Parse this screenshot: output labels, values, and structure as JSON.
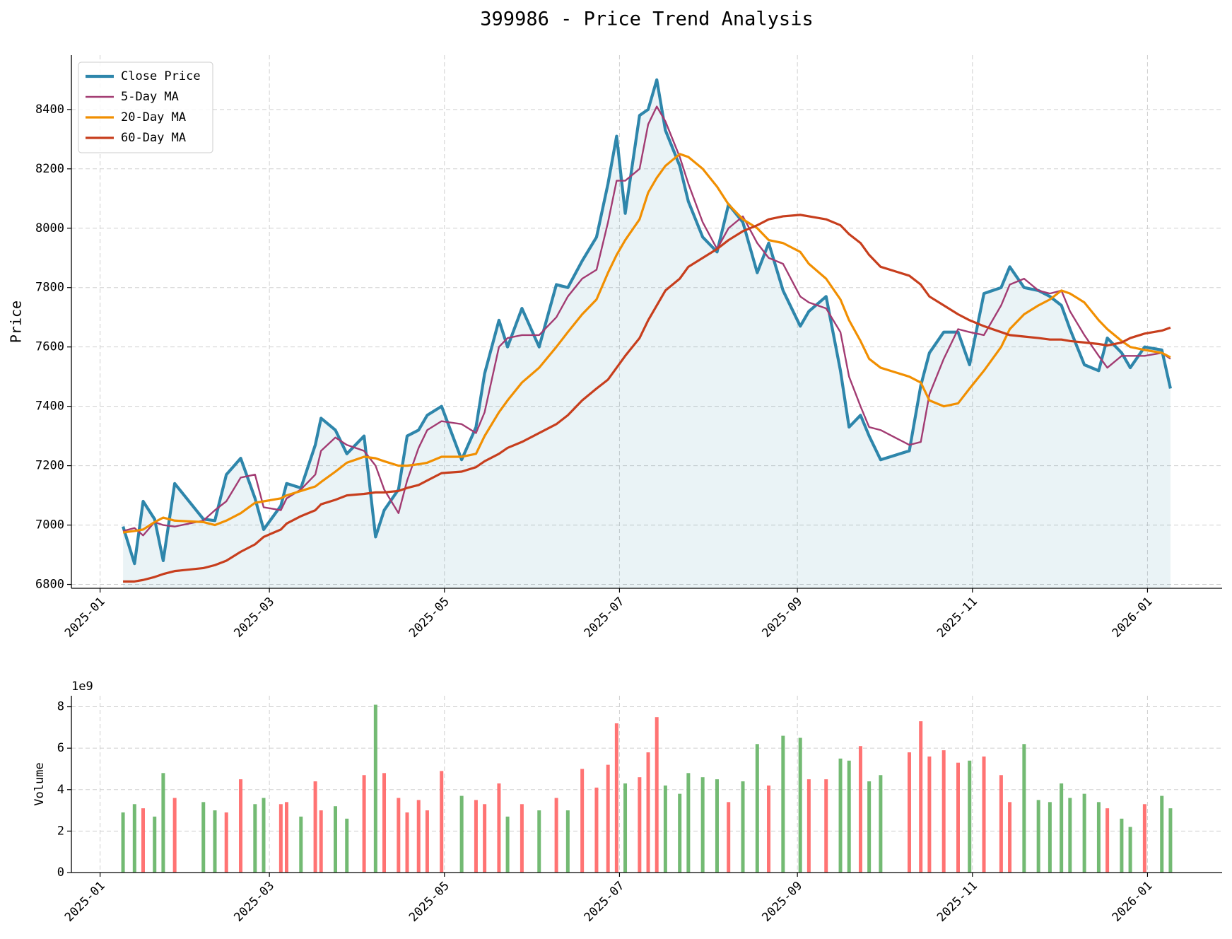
{
  "chart_data": [
    {
      "type": "line",
      "title": "399986 - Price Trend Analysis",
      "ylabel": "Price",
      "x": [
        "2025-01-09",
        "2025-01-13",
        "2025-01-16",
        "2025-01-20",
        "2025-01-23",
        "2025-01-27",
        "2025-02-06",
        "2025-02-10",
        "2025-02-14",
        "2025-02-19",
        "2025-02-24",
        "2025-02-27",
        "2025-03-05",
        "2025-03-07",
        "2025-03-12",
        "2025-03-17",
        "2025-03-19",
        "2025-03-24",
        "2025-03-28",
        "2025-04-03",
        "2025-04-07",
        "2025-04-10",
        "2025-04-15",
        "2025-04-18",
        "2025-04-22",
        "2025-04-25",
        "2025-04-30",
        "2025-05-07",
        "2025-05-12",
        "2025-05-15",
        "2025-05-20",
        "2025-05-23",
        "2025-05-28",
        "2025-06-03",
        "2025-06-09",
        "2025-06-13",
        "2025-06-18",
        "2025-06-23",
        "2025-06-27",
        "2025-06-30",
        "2025-07-03",
        "2025-07-08",
        "2025-07-11",
        "2025-07-14",
        "2025-07-17",
        "2025-07-22",
        "2025-07-25",
        "2025-07-30",
        "2025-08-04",
        "2025-08-08",
        "2025-08-13",
        "2025-08-18",
        "2025-08-22",
        "2025-08-27",
        "2025-09-02",
        "2025-09-05",
        "2025-09-11",
        "2025-09-16",
        "2025-09-19",
        "2025-09-23",
        "2025-09-26",
        "2025-09-30",
        "2025-10-10",
        "2025-10-14",
        "2025-10-17",
        "2025-10-22",
        "2025-10-27",
        "2025-10-31",
        "2025-11-05",
        "2025-11-11",
        "2025-11-14",
        "2025-11-19",
        "2025-11-24",
        "2025-11-28",
        "2025-12-02",
        "2025-12-05",
        "2025-12-10",
        "2025-12-15",
        "2025-12-18",
        "2025-12-23",
        "2025-12-26",
        "2025-12-31",
        "2026-01-06",
        "2026-01-09"
      ],
      "series": [
        {
          "name": "Close Price",
          "color": "#2e86ab",
          "values": [
            6995,
            6870,
            7080,
            7020,
            6880,
            7140,
            7020,
            7015,
            7170,
            7225,
            7090,
            6985,
            7065,
            7140,
            7125,
            7270,
            7360,
            7320,
            7240,
            7300,
            6960,
            7050,
            7120,
            7300,
            7320,
            7370,
            7400,
            7220,
            7330,
            7510,
            7690,
            7600,
            7730,
            7600,
            7810,
            7800,
            7890,
            7970,
            8150,
            8310,
            8050,
            8380,
            8400,
            8500,
            8330,
            8210,
            8090,
            7970,
            7920,
            8080,
            8020,
            7850,
            7950,
            7790,
            7670,
            7720,
            7770,
            7520,
            7330,
            7370,
            7300,
            7220,
            7250,
            7470,
            7580,
            7650,
            7650,
            7540,
            7780,
            7800,
            7870,
            7800,
            7790,
            7770,
            7740,
            7660,
            7540,
            7520,
            7630,
            7580,
            7530,
            7600,
            7590,
            7460
          ]
        },
        {
          "name": "5-Day MA",
          "color": "#a23b72",
          "values": [
            6980,
            6990,
            6965,
            7010,
            7000,
            6995,
            7015,
            7050,
            7080,
            7160,
            7170,
            7060,
            7050,
            7090,
            7120,
            7170,
            7250,
            7295,
            7270,
            7250,
            7200,
            7120,
            7040,
            7150,
            7260,
            7320,
            7350,
            7340,
            7310,
            7380,
            7600,
            7630,
            7640,
            7640,
            7700,
            7770,
            7830,
            7860,
            8020,
            8160,
            8160,
            8200,
            8350,
            8410,
            8360,
            8240,
            8150,
            8020,
            7930,
            8000,
            8040,
            7950,
            7900,
            7880,
            7770,
            7750,
            7730,
            7650,
            7500,
            7400,
            7330,
            7320,
            7270,
            7280,
            7440,
            7560,
            7660,
            7650,
            7640,
            7740,
            7810,
            7830,
            7790,
            7780,
            7790,
            7720,
            7640,
            7570,
            7530,
            7570,
            7570,
            7570,
            7580,
            7560
          ]
        },
        {
          "name": "20-Day MA",
          "color": "#f18f01",
          "values": [
            6975,
            6980,
            6985,
            7010,
            7025,
            7015,
            7010,
            7000,
            7015,
            7040,
            7075,
            7080,
            7090,
            7100,
            7115,
            7130,
            7145,
            7180,
            7210,
            7230,
            7225,
            7215,
            7200,
            7200,
            7205,
            7210,
            7230,
            7230,
            7240,
            7300,
            7380,
            7420,
            7480,
            7530,
            7600,
            7650,
            7710,
            7760,
            7850,
            7910,
            7960,
            8030,
            8120,
            8170,
            8210,
            8250,
            8240,
            8200,
            8140,
            8080,
            8030,
            8000,
            7960,
            7950,
            7920,
            7880,
            7830,
            7760,
            7690,
            7620,
            7560,
            7530,
            7500,
            7480,
            7420,
            7400,
            7410,
            7460,
            7520,
            7600,
            7660,
            7710,
            7740,
            7760,
            7790,
            7780,
            7750,
            7690,
            7660,
            7620,
            7600,
            7590,
            7580,
            7565
          ]
        },
        {
          "name": "60-Day MA",
          "color": "#c73e1d",
          "values": [
            6810,
            6810,
            6815,
            6825,
            6835,
            6845,
            6855,
            6865,
            6880,
            6910,
            6935,
            6960,
            6985,
            7005,
            7030,
            7050,
            7070,
            7085,
            7100,
            7105,
            7110,
            7110,
            7115,
            7125,
            7135,
            7150,
            7175,
            7180,
            7195,
            7215,
            7240,
            7260,
            7280,
            7310,
            7340,
            7370,
            7420,
            7460,
            7490,
            7530,
            7570,
            7630,
            7690,
            7740,
            7790,
            7830,
            7870,
            7900,
            7930,
            7960,
            7990,
            8010,
            8030,
            8040,
            8045,
            8040,
            8030,
            8010,
            7980,
            7950,
            7910,
            7870,
            7840,
            7810,
            7770,
            7740,
            7710,
            7690,
            7670,
            7650,
            7640,
            7635,
            7630,
            7625,
            7625,
            7620,
            7615,
            7610,
            7605,
            7615,
            7630,
            7645,
            7655,
            7665
          ]
        }
      ],
      "xlim": [
        "2024-12-22",
        "2026-01-27"
      ],
      "xticks": [
        {
          "value": "2025-01-01",
          "label": "2025-01"
        },
        {
          "value": "2025-03-01",
          "label": "2025-03"
        },
        {
          "value": "2025-05-01",
          "label": "2025-05"
        },
        {
          "value": "2025-07-01",
          "label": "2025-07"
        },
        {
          "value": "2025-09-01",
          "label": "2025-09"
        },
        {
          "value": "2025-11-01",
          "label": "2025-11"
        },
        {
          "value": "2026-01-01",
          "label": "2026-01"
        }
      ],
      "ylim": [
        6787,
        8583
      ],
      "yticks": [
        6800,
        7000,
        7200,
        7400,
        7600,
        7800,
        8000,
        8200,
        8400
      ],
      "grid": true,
      "legend": "upper left",
      "fill_color": "#2e86ab"
    },
    {
      "type": "bar",
      "ylabel": "Volume",
      "offset_label": "1e9",
      "x": [
        "2025-01-09",
        "2025-01-13",
        "2025-01-16",
        "2025-01-20",
        "2025-01-23",
        "2025-01-27",
        "2025-02-06",
        "2025-02-10",
        "2025-02-14",
        "2025-02-19",
        "2025-02-24",
        "2025-02-27",
        "2025-03-05",
        "2025-03-07",
        "2025-03-12",
        "2025-03-17",
        "2025-03-19",
        "2025-03-24",
        "2025-03-28",
        "2025-04-03",
        "2025-04-07",
        "2025-04-10",
        "2025-04-15",
        "2025-04-18",
        "2025-04-22",
        "2025-04-25",
        "2025-04-30",
        "2025-05-07",
        "2025-05-12",
        "2025-05-15",
        "2025-05-20",
        "2025-05-23",
        "2025-05-28",
        "2025-06-03",
        "2025-06-09",
        "2025-06-13",
        "2025-06-18",
        "2025-06-23",
        "2025-06-27",
        "2025-06-30",
        "2025-07-03",
        "2025-07-08",
        "2025-07-11",
        "2025-07-14",
        "2025-07-17",
        "2025-07-22",
        "2025-07-25",
        "2025-07-30",
        "2025-08-04",
        "2025-08-08",
        "2025-08-13",
        "2025-08-18",
        "2025-08-22",
        "2025-08-27",
        "2025-09-02",
        "2025-09-05",
        "2025-09-11",
        "2025-09-16",
        "2025-09-19",
        "2025-09-23",
        "2025-09-26",
        "2025-09-30",
        "2025-10-10",
        "2025-10-14",
        "2025-10-17",
        "2025-10-22",
        "2025-10-27",
        "2025-10-31",
        "2025-11-05",
        "2025-11-11",
        "2025-11-14",
        "2025-11-19",
        "2025-11-24",
        "2025-11-28",
        "2025-12-02",
        "2025-12-05",
        "2025-12-10",
        "2025-12-15",
        "2025-12-18",
        "2025-12-23",
        "2025-12-26",
        "2025-12-31",
        "2026-01-06",
        "2026-01-09"
      ],
      "values": [
        2.9,
        3.3,
        3.1,
        2.7,
        4.8,
        3.6,
        3.4,
        3.0,
        2.9,
        4.5,
        3.3,
        3.6,
        3.3,
        3.4,
        2.7,
        4.4,
        3.0,
        3.2,
        2.6,
        4.7,
        8.1,
        4.8,
        3.6,
        2.9,
        3.5,
        3.0,
        4.9,
        3.7,
        3.5,
        3.3,
        4.3,
        2.7,
        3.3,
        3.0,
        3.6,
        3.0,
        5.0,
        4.1,
        5.2,
        7.2,
        4.3,
        4.6,
        5.8,
        7.5,
        4.2,
        3.8,
        4.8,
        4.6,
        4.5,
        3.4,
        4.4,
        6.2,
        4.2,
        6.6,
        6.5,
        4.5,
        4.5,
        5.5,
        5.4,
        6.1,
        4.4,
        4.7,
        5.8,
        7.3,
        5.6,
        5.9,
        5.3,
        5.4,
        5.6,
        4.7,
        3.4,
        6.2,
        3.5,
        3.4,
        4.3,
        3.6,
        3.8,
        3.4,
        3.1,
        2.6,
        2.2,
        3.3,
        3.7,
        3.1
      ],
      "up_color": "#ff6b6b",
      "down_color": "#6cb66c",
      "xlim": [
        "2024-12-22",
        "2026-01-27"
      ],
      "xticks": [
        {
          "value": "2025-01-01",
          "label": "2025-01"
        },
        {
          "value": "2025-03-01",
          "label": "2025-03"
        },
        {
          "value": "2025-05-01",
          "label": "2025-05"
        },
        {
          "value": "2025-07-01",
          "label": "2025-07"
        },
        {
          "value": "2025-09-01",
          "label": "2025-09"
        },
        {
          "value": "2025-11-01",
          "label": "2025-11"
        },
        {
          "value": "2026-01-01",
          "label": "2026-01"
        }
      ],
      "ylim": [
        0,
        8.53
      ],
      "yticks": [
        0,
        2,
        4,
        6,
        8
      ],
      "grid": true
    }
  ]
}
